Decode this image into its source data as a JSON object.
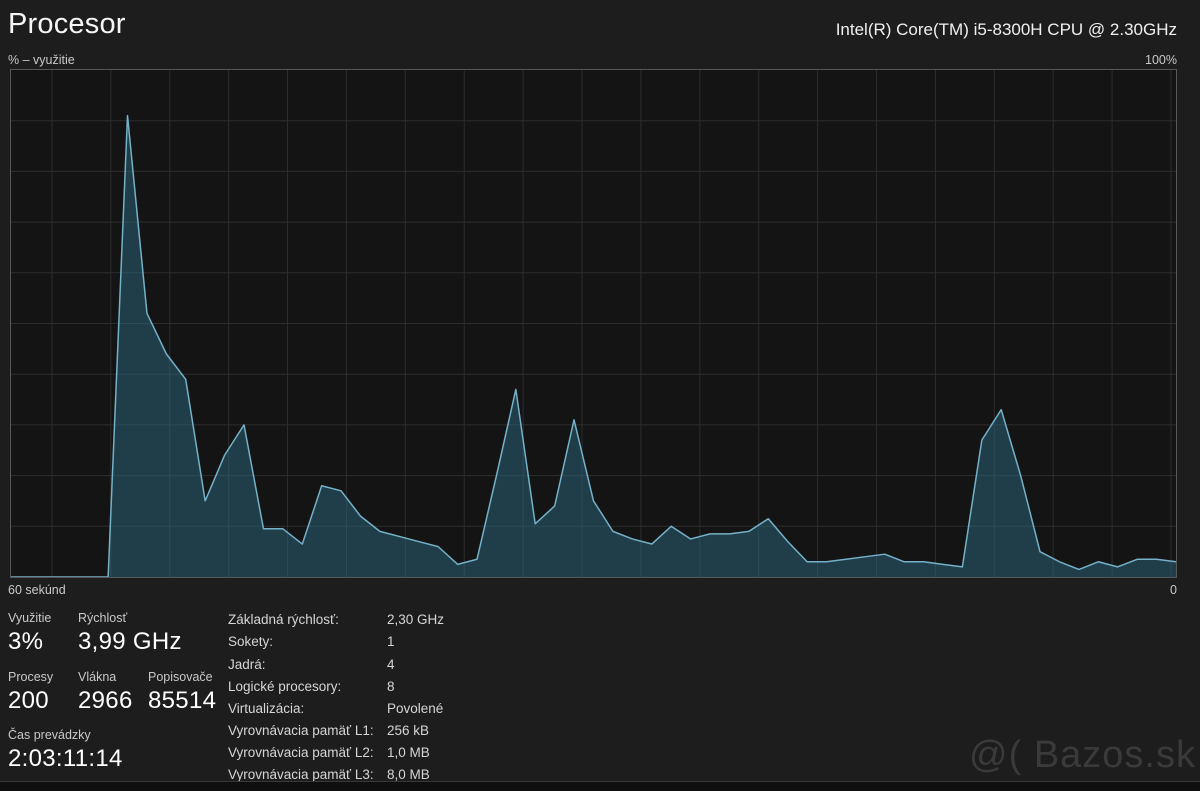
{
  "header": {
    "title": "Procesor",
    "cpu_model": "Intel(R) Core(TM) i5-8300H CPU @ 2.30GHz"
  },
  "chart": {
    "y_axis_label": "% – využitie",
    "y_max_label": "100%",
    "x_left_label": "60 sekúnd",
    "x_right_label": "0",
    "colors": {
      "line": "#75b1c8",
      "fill": "rgba(44,112,140,0.45)",
      "grid": "#2d2d2d",
      "background": "#141414",
      "border": "#575757"
    }
  },
  "chart_data": {
    "type": "area",
    "title": "CPU % usage over last 60 seconds",
    "xlabel": "seconds ago (60 at left, 0 at right)",
    "ylabel": "% využitie",
    "x_range_seconds": [
      60,
      0
    ],
    "y_range": [
      0,
      100
    ],
    "grid": true,
    "sample_interval_seconds": 1,
    "usage_pct": [
      0,
      0,
      0,
      0,
      0,
      0,
      91,
      52,
      44,
      39,
      15,
      24,
      30,
      9.5,
      9.5,
      6.5,
      18,
      17,
      12,
      9,
      8,
      7,
      6,
      2.5,
      3.5,
      20,
      37,
      10.5,
      14,
      31,
      15,
      9,
      7.5,
      6.5,
      10,
      7.5,
      8.5,
      8.5,
      9,
      11.5,
      7,
      3,
      3,
      3.5,
      4,
      4.5,
      3,
      3,
      2.5,
      2,
      27,
      33,
      20,
      5,
      3,
      1.5,
      3,
      2,
      3.5,
      3.5,
      3
    ]
  },
  "stats": {
    "left": [
      {
        "label": "Využitie",
        "value": "3%"
      },
      {
        "label": "Rýchlosť",
        "value": "3,99 GHz"
      },
      {
        "label": "Procesy",
        "value": "200"
      },
      {
        "label": "Vlákna",
        "value": "2966"
      },
      {
        "label": "Popisovače",
        "value": "85514"
      },
      {
        "label": "Čas prevádzky",
        "value": "2:03:11:14"
      }
    ],
    "right": [
      {
        "label": "Základná rýchlosť:",
        "value": "2,30 GHz"
      },
      {
        "label": "Sokety:",
        "value": "1"
      },
      {
        "label": "Jadrá:",
        "value": "4"
      },
      {
        "label": "Logické procesory:",
        "value": "8"
      },
      {
        "label": "Virtualizácia:",
        "value": "Povolené"
      },
      {
        "label": "Vyrovnávacia pamäť L1:",
        "value": "256 kB"
      },
      {
        "label": "Vyrovnávacia pamäť L2:",
        "value": "1,0 MB"
      },
      {
        "label": "Vyrovnávacia pamäť L3:",
        "value": "8,0 MB"
      }
    ]
  },
  "watermark": "@( Bazos.sk"
}
